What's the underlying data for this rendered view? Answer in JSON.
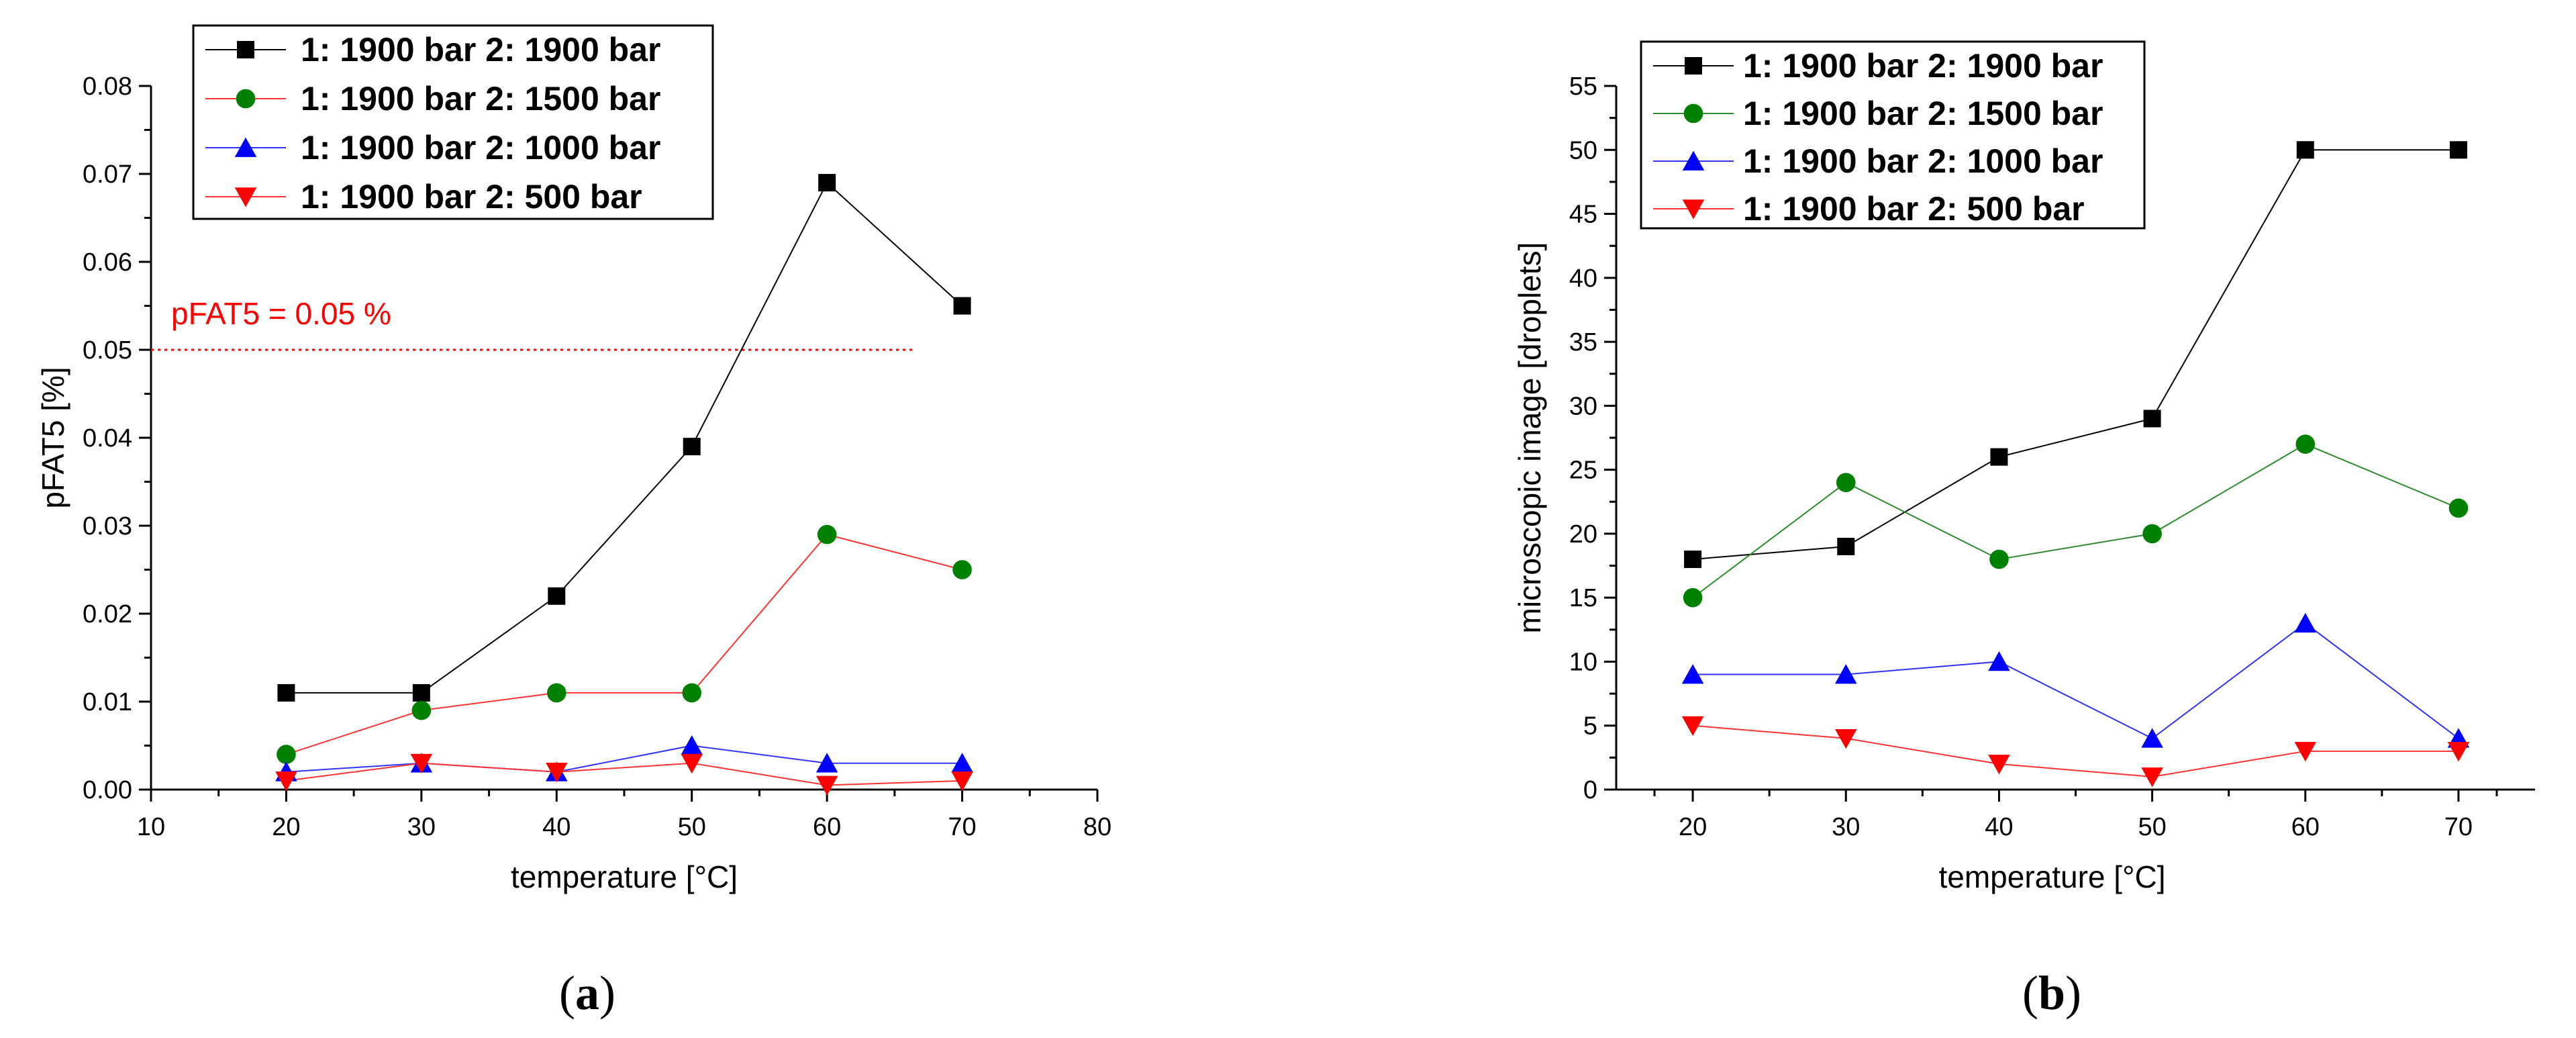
{
  "colors": {
    "black": "#000000",
    "green": "#008000",
    "blue": "#0000ff",
    "red": "#ff0000",
    "line_black": "#000000",
    "line_green": "#2e8b2e",
    "line_blue": "#3333ff",
    "line_red": "#ff3333",
    "threshold": "#ff0000"
  },
  "panel_a_caption": {
    "open": "(",
    "letter": "a",
    "close": ")"
  },
  "panel_b_caption": {
    "open": "(",
    "letter": "b",
    "close": ")"
  },
  "chart_data": [
    {
      "id": "a",
      "type": "line",
      "xlabel": "temperature [°C]",
      "ylabel": "pFAT5 [%]",
      "xlim": [
        10,
        80
      ],
      "ylim": [
        0,
        0.08
      ],
      "xticks": [
        10,
        20,
        30,
        40,
        50,
        60,
        70,
        80
      ],
      "yticks": [
        0.0,
        0.01,
        0.02,
        0.03,
        0.04,
        0.05,
        0.06,
        0.07,
        0.08
      ],
      "ytick_decimals": 2,
      "legend_position": "top-left",
      "annotation": {
        "text": "pFAT5 = 0.05 %",
        "y": 0.05,
        "x_anchor": 10.5
      },
      "series": [
        {
          "name": "1: 1900 bar 2: 1900 bar",
          "marker": "square",
          "color": "black",
          "line": "line_black",
          "x": [
            20,
            30,
            40,
            50,
            60,
            70
          ],
          "values": [
            0.011,
            0.011,
            0.022,
            0.039,
            0.069,
            0.055
          ]
        },
        {
          "name": "1: 1900 bar 2: 1500 bar",
          "marker": "circle",
          "color": "green",
          "line": "line_red",
          "x": [
            20,
            30,
            40,
            50,
            60,
            70
          ],
          "values": [
            0.004,
            0.009,
            0.011,
            0.011,
            0.029,
            0.025
          ]
        },
        {
          "name": "1: 1900 bar 2: 1000 bar",
          "marker": "triangle-up",
          "color": "blue",
          "line": "line_blue",
          "x": [
            20,
            30,
            40,
            50,
            60,
            70
          ],
          "values": [
            0.002,
            0.003,
            0.002,
            0.005,
            0.003,
            0.003
          ]
        },
        {
          "name": "1: 1900 bar 2: 500 bar",
          "marker": "triangle-down",
          "color": "red",
          "line": "line_red",
          "x": [
            20,
            30,
            40,
            50,
            60,
            70
          ],
          "values": [
            0.001,
            0.003,
            0.002,
            0.003,
            0.0005,
            0.001
          ]
        }
      ]
    },
    {
      "id": "b",
      "type": "line",
      "xlabel": "temperature [°C]",
      "ylabel": "microscopic image [droplets]",
      "xlim": [
        15,
        75
      ],
      "ylim": [
        0,
        55
      ],
      "xticks": [
        20,
        30,
        40,
        50,
        60,
        70
      ],
      "yticks": [
        0,
        5,
        10,
        15,
        20,
        25,
        30,
        35,
        40,
        45,
        50,
        55
      ],
      "ytick_decimals": 0,
      "legend_position": "top-left",
      "series": [
        {
          "name": "1: 1900 bar 2: 1900 bar",
          "marker": "square",
          "color": "black",
          "line": "line_black",
          "x": [
            20,
            30,
            40,
            50,
            60,
            70
          ],
          "values": [
            18,
            19,
            26,
            29,
            50,
            50
          ]
        },
        {
          "name": "1: 1900 bar 2: 1500 bar",
          "marker": "circle",
          "color": "green",
          "line": "line_green",
          "x": [
            20,
            30,
            40,
            50,
            60,
            70
          ],
          "values": [
            15,
            24,
            18,
            20,
            27,
            22
          ]
        },
        {
          "name": "1: 1900 bar 2: 1000 bar",
          "marker": "triangle-up",
          "color": "blue",
          "line": "line_blue",
          "x": [
            20,
            30,
            40,
            50,
            60,
            70
          ],
          "values": [
            9,
            9,
            10,
            4,
            13,
            4
          ]
        },
        {
          "name": "1: 1900 bar 2: 500 bar",
          "marker": "triangle-down",
          "color": "red",
          "line": "line_red",
          "x": [
            20,
            30,
            40,
            50,
            60,
            70
          ],
          "values": [
            5,
            4,
            2,
            1,
            3,
            3
          ]
        }
      ]
    }
  ]
}
